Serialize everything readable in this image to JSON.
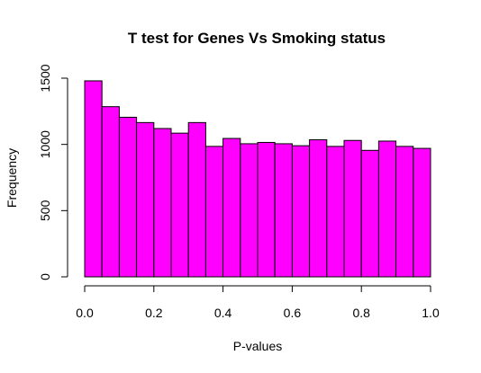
{
  "chart_data": {
    "type": "bar",
    "title": "T test for Genes Vs Smoking status",
    "xlabel": "P-values",
    "ylabel": "Frequency",
    "bin_edges": [
      0.0,
      0.05,
      0.1,
      0.15,
      0.2,
      0.25,
      0.3,
      0.35,
      0.4,
      0.45,
      0.5,
      0.55,
      0.6,
      0.65,
      0.7,
      0.75,
      0.8,
      0.85,
      0.9,
      0.95,
      1.0
    ],
    "values": [
      1480,
      1285,
      1205,
      1165,
      1120,
      1085,
      1165,
      985,
      1045,
      1005,
      1015,
      1005,
      990,
      1035,
      985,
      1030,
      955,
      1025,
      985,
      970
    ],
    "xlim": [
      0,
      1
    ],
    "ylim": [
      0,
      1500
    ],
    "x_ticks": [
      "0.0",
      "0.2",
      "0.4",
      "0.6",
      "0.8",
      "1.0"
    ],
    "y_ticks": [
      "0",
      "500",
      "1000",
      "1500"
    ],
    "grid": false,
    "colors": {
      "bar_fill": "#ff00ff",
      "bar_stroke": "#000000"
    }
  }
}
